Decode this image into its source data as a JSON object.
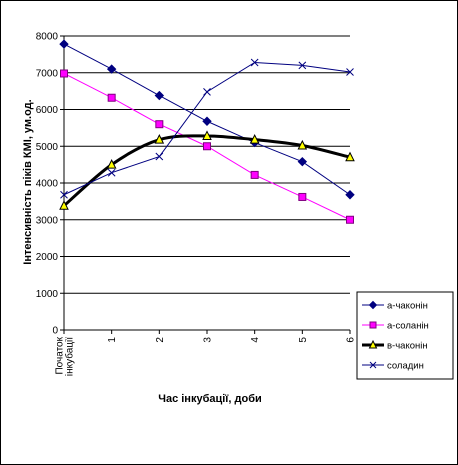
{
  "chart_data": {
    "type": "line",
    "title": "",
    "xlabel": "Час інкубації, доби",
    "ylabel": "Інтенсивність піків КМІ, ум.од.",
    "categories": [
      "Початок інкубації",
      "1",
      "2",
      "3",
      "4",
      "5",
      "6"
    ],
    "category_lines": [
      [
        "Початок",
        "інкубації"
      ],
      [
        "1"
      ],
      [
        "2"
      ],
      [
        "3"
      ],
      [
        "4"
      ],
      [
        "5"
      ],
      [
        "6"
      ]
    ],
    "ylim": [
      0,
      8000
    ],
    "yticks": [
      0,
      1000,
      2000,
      3000,
      4000,
      5000,
      6000,
      7000,
      8000
    ],
    "grid": "horizontal",
    "legend_position": "right",
    "series": [
      {
        "name": "а-чаконін",
        "color": "#000080",
        "marker": "diamond",
        "values": [
          7780,
          7100,
          6380,
          5680,
          5100,
          4580,
          3680
        ]
      },
      {
        "name": "а-соланін",
        "color": "#ff00ff",
        "marker": "square",
        "values": [
          6980,
          6320,
          5600,
          5000,
          4220,
          3620,
          3000
        ]
      },
      {
        "name": "в-чаконін",
        "color": "#000000",
        "marker": "triangle",
        "values": [
          3380,
          4500,
          5180,
          5280,
          5180,
          5020,
          4700
        ]
      },
      {
        "name": "соладин",
        "color": "#000080",
        "marker": "x",
        "values": [
          3680,
          4280,
          4720,
          6480,
          7280,
          7200,
          7020
        ]
      }
    ]
  }
}
